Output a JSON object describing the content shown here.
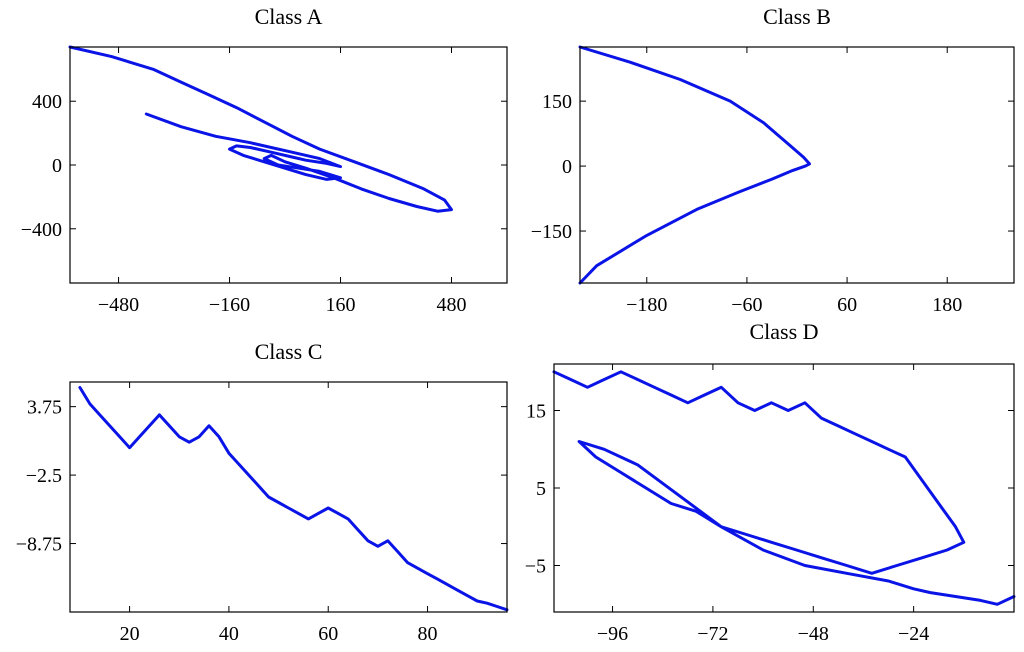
{
  "colors": {
    "series": "#0a14e6"
  },
  "chart_data": [
    {
      "type": "line",
      "title": "Class A",
      "xlim": [
        -620,
        640
      ],
      "ylim": [
        -740,
        740
      ],
      "xticks": [
        -480,
        -160,
        160,
        480
      ],
      "xtick_labels": [
        "−480",
        "−160",
        "160",
        "480"
      ],
      "yticks": [
        -400,
        0,
        400
      ],
      "ytick_labels": [
        "−400",
        "0",
        "400"
      ],
      "series": [
        {
          "x": [
            -620,
            -500,
            -380,
            -300,
            -220,
            -140,
            -60,
            20,
            100,
            200,
            300,
            400,
            460,
            480,
            440,
            380,
            300,
            220,
            140,
            60,
            0,
            -40,
            -60,
            -20,
            40,
            100,
            160,
            120,
            60,
            0,
            -60,
            -120,
            -160,
            -140,
            -100,
            -40,
            20,
            60,
            120,
            160,
            100,
            20,
            -40,
            -100,
            -200,
            -300,
            -400
          ],
          "y": [
            740,
            680,
            600,
            520,
            440,
            360,
            270,
            180,
            100,
            20,
            -60,
            -150,
            -220,
            -280,
            -290,
            -260,
            -210,
            -150,
            -80,
            -20,
            20,
            60,
            40,
            0,
            -20,
            -40,
            -80,
            -90,
            -60,
            -20,
            20,
            60,
            100,
            120,
            110,
            80,
            50,
            30,
            10,
            -10,
            40,
            80,
            110,
            140,
            180,
            240,
            320
          ]
        }
      ]
    },
    {
      "type": "line",
      "title": "Class B",
      "xlim": [
        -260,
        260
      ],
      "ylim": [
        -270,
        275
      ],
      "xticks": [
        -180,
        -60,
        60,
        180
      ],
      "xtick_labels": [
        "−180",
        "−60",
        "60",
        "180"
      ],
      "yticks": [
        -150,
        0,
        150
      ],
      "ytick_labels": [
        "−150",
        "0",
        "150"
      ],
      "series": [
        {
          "x": [
            -260,
            -200,
            -140,
            -80,
            -40,
            -10,
            8,
            15,
            10,
            -5,
            -30,
            -70,
            -120,
            -180,
            -240,
            -260
          ],
          "y": [
            275,
            240,
            200,
            150,
            100,
            50,
            20,
            5,
            0,
            -10,
            -30,
            -60,
            -100,
            -160,
            -230,
            -270
          ]
        }
      ]
    },
    {
      "type": "line",
      "title": "Class C",
      "xlim": [
        8,
        96
      ],
      "ylim": [
        -15,
        6
      ],
      "xticks": [
        20,
        40,
        60,
        80
      ],
      "xtick_labels": [
        "20",
        "40",
        "60",
        "80"
      ],
      "yticks": [
        -8.75,
        -2.5,
        3.75
      ],
      "ytick_labels": [
        "−8.75",
        "−2.5",
        "3.75"
      ],
      "series": [
        {
          "x": [
            10,
            12,
            14,
            16,
            18,
            20,
            22,
            24,
            26,
            28,
            30,
            32,
            34,
            36,
            38,
            40,
            42,
            44,
            46,
            48,
            50,
            52,
            54,
            56,
            58,
            60,
            62,
            64,
            66,
            68,
            70,
            72,
            74,
            76,
            78,
            80,
            82,
            84,
            86,
            88,
            90,
            92,
            94,
            96
          ],
          "y": [
            5.5,
            4,
            3,
            2,
            1,
            0,
            1,
            2,
            3,
            2,
            1,
            0.5,
            1,
            2,
            1,
            -0.5,
            -1.5,
            -2.5,
            -3.5,
            -4.5,
            -5,
            -5.5,
            -6,
            -6.5,
            -6,
            -5.5,
            -6,
            -6.5,
            -7.5,
            -8.5,
            -9,
            -8.5,
            -9.5,
            -10.5,
            -11,
            -11.5,
            -12,
            -12.5,
            -13,
            -13.5,
            -14,
            -14.2,
            -14.5,
            -14.8
          ]
        }
      ]
    },
    {
      "type": "line",
      "title": "Class D",
      "xlim": [
        -110,
        0
      ],
      "ylim": [
        -11,
        21
      ],
      "xticks": [
        -96,
        -72,
        -48,
        -24
      ],
      "xtick_labels": [
        "−96",
        "−72",
        "−48",
        "−24"
      ],
      "yticks": [
        -5,
        5,
        15
      ],
      "ytick_labels": [
        "−5",
        "5",
        "15"
      ],
      "series": [
        {
          "x": [
            -110,
            -106,
            -102,
            -98,
            -94,
            -90,
            -86,
            -82,
            -78,
            -74,
            -70,
            -66,
            -62,
            -58,
            -54,
            -50,
            -46,
            -42,
            -38,
            -34,
            -30,
            -26,
            -22,
            -18,
            -14,
            -12,
            -16,
            -22,
            -28,
            -34,
            -40,
            -46,
            -52,
            -58,
            -64,
            -70,
            -76,
            -82,
            -88,
            -94,
            -100,
            -104,
            -98,
            -90,
            -80,
            -70,
            -60,
            -50,
            -40,
            -30,
            -24,
            -20,
            -14,
            -8,
            -4,
            0
          ],
          "y": [
            20,
            19,
            18,
            19,
            20,
            19,
            18,
            17,
            16,
            17,
            18,
            16,
            15,
            16,
            15,
            16,
            14,
            13,
            12,
            11,
            10,
            9,
            6,
            3,
            0,
            -2,
            -3,
            -4,
            -5,
            -6,
            -5,
            -4,
            -3,
            -2,
            -1,
            0,
            2,
            3,
            5,
            7,
            9,
            11,
            10,
            8,
            4,
            0,
            -3,
            -5,
            -6,
            -7,
            -8,
            -8.5,
            -9,
            -9.5,
            -10,
            -9
          ]
        }
      ]
    }
  ]
}
